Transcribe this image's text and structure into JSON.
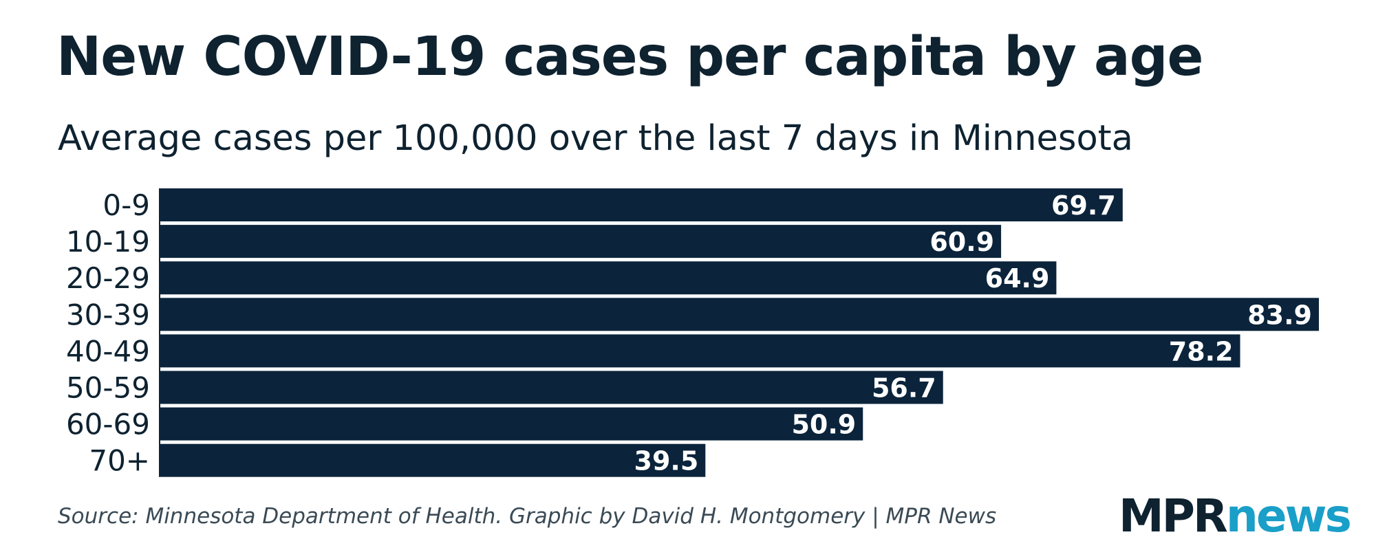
{
  "title": "New COVID-19 cases per capita by age",
  "subtitle": "Average cases per 100,000 over the last 7 days in Minnesota",
  "source": "Source: Minnesota Department of Health. Graphic by David H. Montgomery | MPR News",
  "logo": {
    "part1": "MPR",
    "part2": "news"
  },
  "colors": {
    "bar": "#0b243b",
    "text": "#0e2230",
    "logo_accent": "#1a9fc8"
  },
  "chart_data": {
    "type": "bar",
    "orientation": "horizontal",
    "categories": [
      "0-9",
      "10-19",
      "20-29",
      "30-39",
      "40-49",
      "50-59",
      "60-69",
      "70+"
    ],
    "values": [
      69.7,
      60.9,
      64.9,
      83.9,
      78.2,
      56.7,
      50.9,
      39.5
    ],
    "value_labels": [
      "69.7",
      "60.9",
      "64.9",
      "83.9",
      "78.2",
      "56.7",
      "50.9",
      "39.5"
    ],
    "xlim": [
      0,
      83.9
    ],
    "grid": false,
    "legend": "none"
  }
}
